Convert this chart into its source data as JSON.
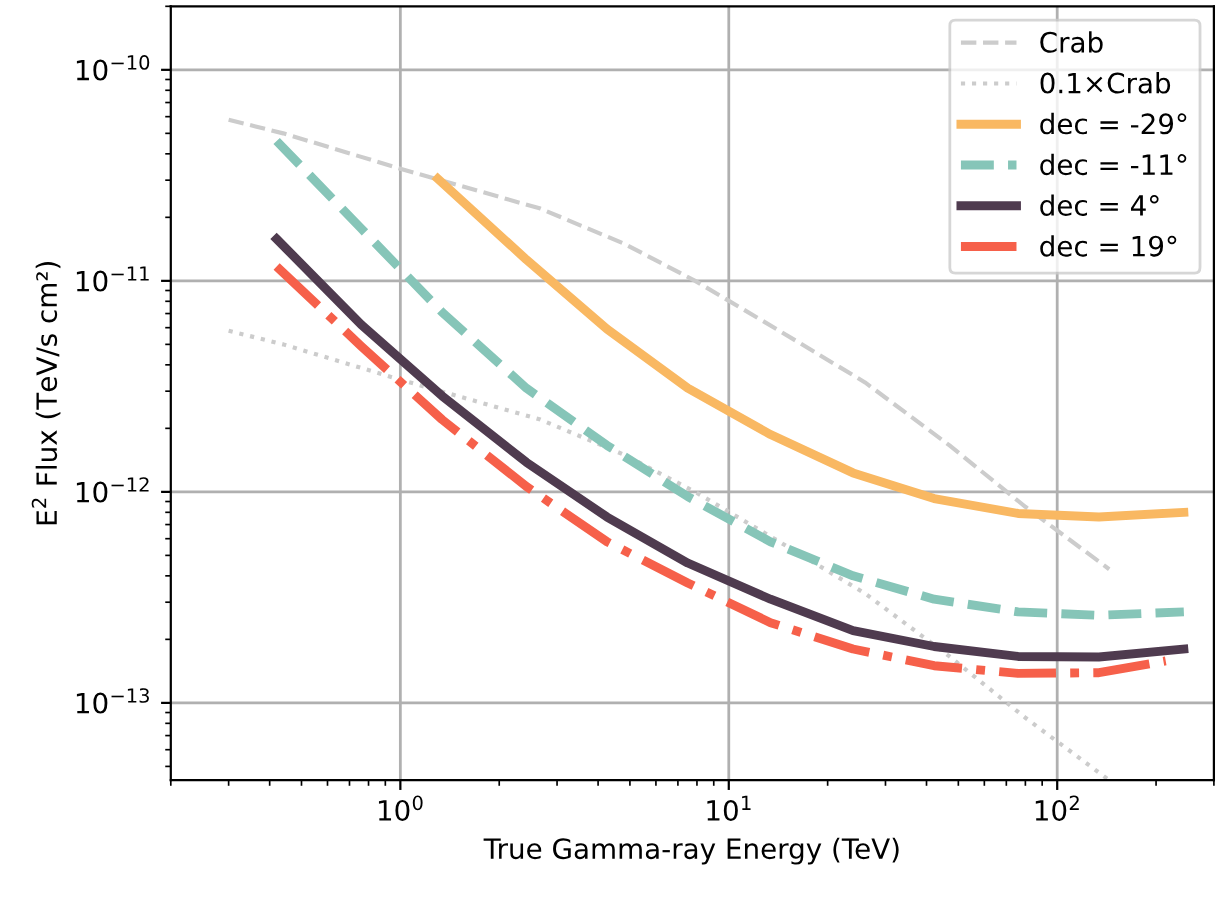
{
  "chart_data": {
    "type": "line",
    "xlabel": "True Gamma-ray Energy (TeV)",
    "ylabel": "E$^{2}$ Flux (TeV/s cm²)",
    "log": "xy",
    "grid": true,
    "legend": "top right",
    "xlim": [
      0.2,
      300
    ],
    "ylim": [
      4.3e-14,
      2e-10
    ],
    "xticks": [
      {
        "value": 1,
        "label": "10$^{0}$"
      },
      {
        "value": 10,
        "label": "10$^{1}$"
      },
      {
        "value": 100,
        "label": "10$^{2}$"
      }
    ],
    "yticks": [
      {
        "value": 1e-13,
        "label": "10$^{−13}$"
      },
      {
        "value": 1e-12,
        "label": "10$^{−12}$"
      },
      {
        "value": 1e-11,
        "label": "10$^{−11}$"
      },
      {
        "value": 1e-10,
        "label": "10$^{−10}$"
      }
    ],
    "series": [
      {
        "name": "Crab",
        "color": "#cccccc",
        "line_style": "dashed",
        "x": [
          0.3,
          0.44,
          1.0,
          2.67,
          4.8,
          7.9,
          14,
          26,
          47,
          80,
          144
        ],
        "values": [
          5.8e-11,
          5e-11,
          3.4e-11,
          2.2e-11,
          1.5e-11,
          1e-11,
          5.9e-12,
          3.3e-12,
          1.66e-12,
          8.5e-13,
          4.3e-13
        ]
      },
      {
        "name": "0.1×Crab",
        "color": "#cccccc",
        "line_style": "dotted",
        "x": [
          0.3,
          0.44,
          1.0,
          2.67,
          4.8,
          7.9,
          14,
          26,
          47,
          80,
          144
        ],
        "values": [
          5.8e-12,
          5e-12,
          3.4e-12,
          2.2e-12,
          1.5e-12,
          1e-12,
          5.9e-13,
          3.3e-13,
          1.66e-13,
          8.5e-14,
          4.3e-14
        ]
      },
      {
        "name": "dec = -29°",
        "color": "#f9b862",
        "line_style": "solid",
        "x": [
          1.3,
          2.42,
          4.26,
          7.5,
          13.4,
          23.9,
          42.2,
          76,
          134,
          243
        ],
        "values": [
          3.05e-11,
          1.26e-11,
          5.9e-12,
          3.1e-12,
          1.87e-12,
          1.23e-12,
          9.3e-13,
          7.9e-13,
          7.6e-13,
          8e-13
        ]
      },
      {
        "name": "dec = -11°",
        "color": "#86c5b8",
        "line_style": "dashed",
        "x": [
          0.42,
          0.76,
          1.34,
          2.42,
          4.26,
          7.5,
          13.4,
          23.9,
          42.2,
          76,
          134,
          243
        ],
        "values": [
          4.6e-11,
          1.77e-11,
          7.1e-12,
          3.1e-12,
          1.66e-12,
          9.5e-13,
          5.8e-13,
          4e-13,
          3.1e-13,
          2.7e-13,
          2.6e-13,
          2.7e-13
        ]
      },
      {
        "name": "dec = 4°",
        "color": "#4f3b4f",
        "line_style": "solid",
        "x": [
          0.42,
          0.76,
          1.34,
          2.42,
          4.26,
          7.5,
          13.4,
          23.9,
          42.2,
          76,
          134,
          243
        ],
        "values": [
          1.58e-11,
          6.2e-12,
          2.85e-12,
          1.38e-12,
          7.6e-13,
          4.6e-13,
          3.1e-13,
          2.2e-13,
          1.85e-13,
          1.66e-13,
          1.65e-13,
          1.8e-13
        ]
      },
      {
        "name": "dec = 19°",
        "color": "#f6604a",
        "line_style": "dashdot",
        "x": [
          0.42,
          0.76,
          1.34,
          2.42,
          4.26,
          7.5,
          13.4,
          23.9,
          42.2,
          76,
          134,
          214
        ],
        "values": [
          1.17e-11,
          4.9e-12,
          2.2e-12,
          1.06e-12,
          5.8e-13,
          3.7e-13,
          2.4e-13,
          1.8e-13,
          1.5e-13,
          1.38e-13,
          1.39e-13,
          1.58e-13
        ]
      }
    ]
  }
}
